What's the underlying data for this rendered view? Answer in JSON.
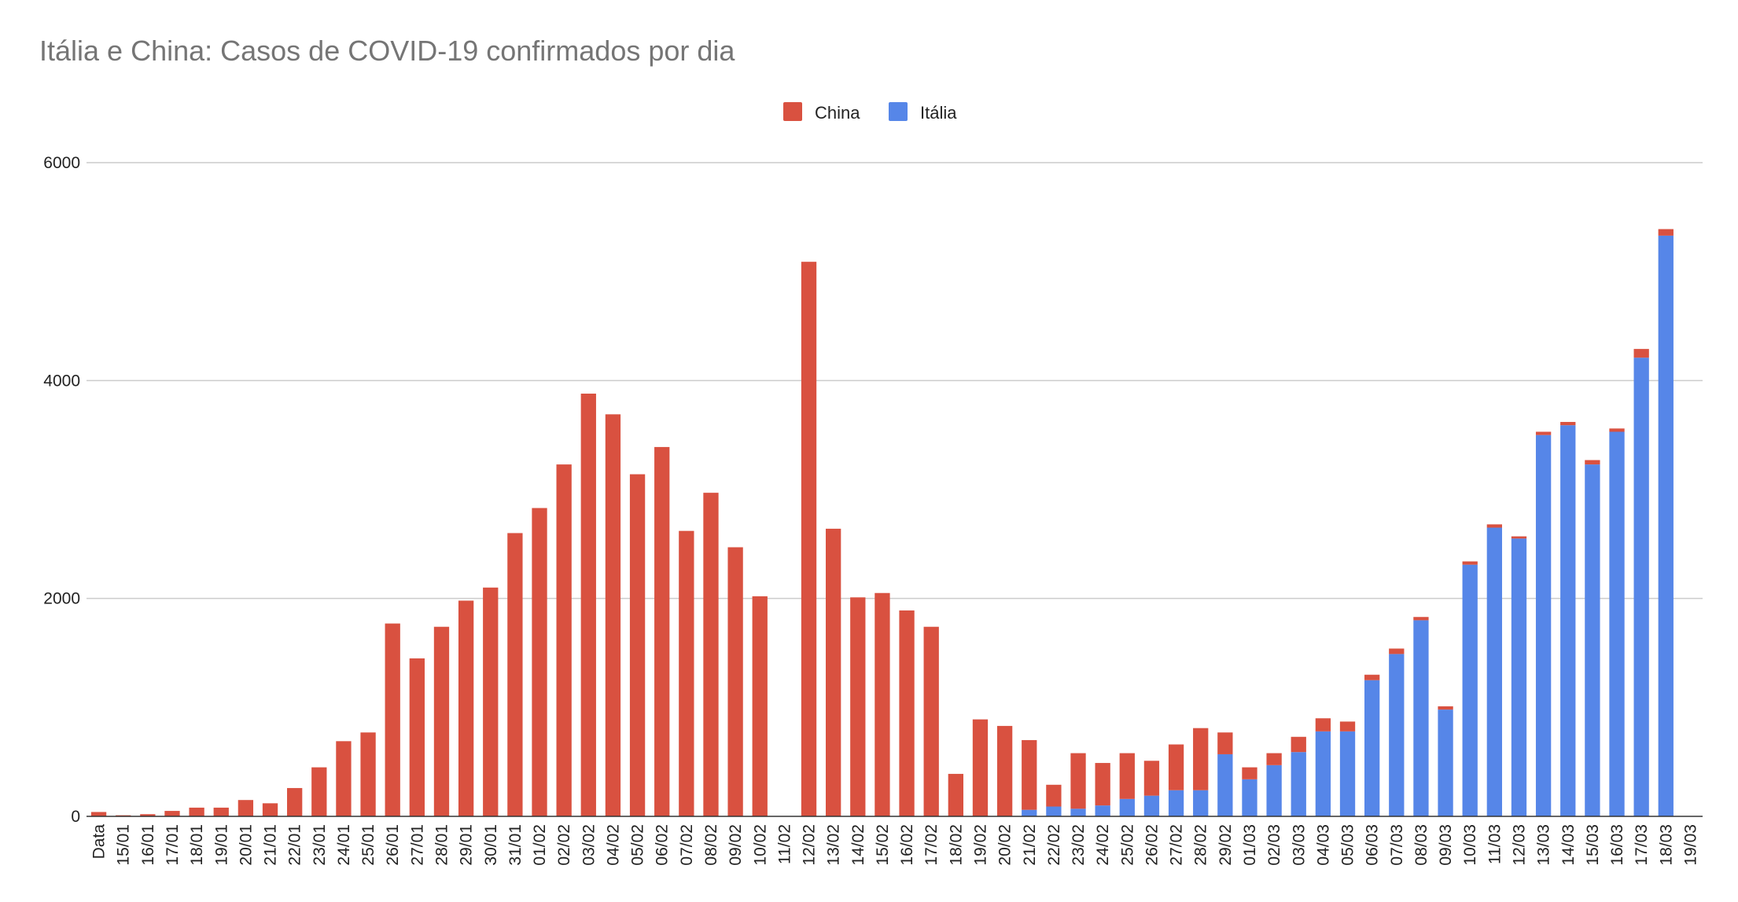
{
  "chart_data": {
    "type": "bar",
    "stacked": true,
    "title": "Itália e China: Casos de COVID-19 confirmados por dia",
    "xlabel": "",
    "ylabel": "",
    "ylim": [
      0,
      6000
    ],
    "yticks": [
      0,
      2000,
      4000,
      6000
    ],
    "grid": true,
    "legend_position": "top-center",
    "categories": [
      "Data",
      "15/01",
      "16/01",
      "17/01",
      "18/01",
      "19/01",
      "20/01",
      "21/01",
      "22/01",
      "23/01",
      "24/01",
      "25/01",
      "26/01",
      "27/01",
      "28/01",
      "29/01",
      "30/01",
      "31/01",
      "01/02",
      "02/02",
      "03/02",
      "04/02",
      "05/02",
      "06/02",
      "07/02",
      "08/02",
      "09/02",
      "10/02",
      "11/02",
      "12/02",
      "13/02",
      "14/02",
      "15/02",
      "16/02",
      "17/02",
      "18/02",
      "19/02",
      "20/02",
      "21/02",
      "22/02",
      "23/02",
      "24/02",
      "25/02",
      "26/02",
      "27/02",
      "28/02",
      "29/02",
      "01/03",
      "02/03",
      "03/03",
      "04/03",
      "05/03",
      "06/03",
      "07/03",
      "08/03",
      "09/03",
      "10/03",
      "11/03",
      "12/03",
      "13/03",
      "14/03",
      "15/03",
      "16/03",
      "17/03",
      "18/03",
      "19/03"
    ],
    "series": [
      {
        "name": "Itália",
        "color": "#5686e8",
        "values": [
          0,
          0,
          0,
          0,
          0,
          0,
          0,
          0,
          0,
          0,
          0,
          0,
          0,
          0,
          0,
          0,
          0,
          0,
          0,
          0,
          0,
          0,
          0,
          0,
          0,
          0,
          0,
          0,
          0,
          0,
          0,
          0,
          0,
          0,
          0,
          0,
          0,
          0,
          60,
          90,
          70,
          100,
          160,
          190,
          240,
          240,
          570,
          340,
          470,
          590,
          780,
          780,
          1250,
          1490,
          1800,
          980,
          2310,
          2650,
          2550,
          3500,
          3590,
          3230,
          3530,
          4210,
          5330,
          0
        ]
      },
      {
        "name": "China",
        "color": "#d95140",
        "values": [
          40,
          10,
          20,
          50,
          80,
          80,
          150,
          120,
          260,
          450,
          690,
          770,
          1770,
          1450,
          1740,
          1980,
          2100,
          2600,
          2830,
          3230,
          3880,
          3690,
          3140,
          3390,
          2620,
          2970,
          2470,
          2020,
          0,
          5090,
          2640,
          2010,
          2050,
          1890,
          1740,
          390,
          890,
          830,
          640,
          200,
          510,
          390,
          420,
          320,
          420,
          570,
          200,
          110,
          110,
          140,
          120,
          90,
          50,
          50,
          30,
          30,
          30,
          30,
          20,
          30,
          30,
          40,
          30,
          80,
          60,
          0
        ]
      }
    ]
  }
}
